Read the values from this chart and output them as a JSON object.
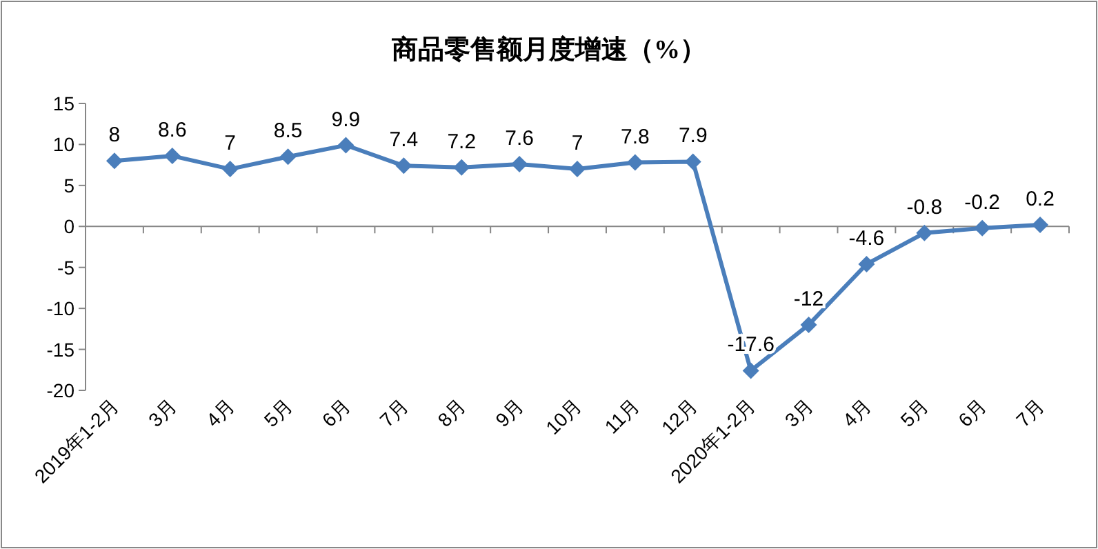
{
  "chart_data": {
    "type": "line",
    "title": "商品零售额月度增速（%）",
    "categories": [
      "2019年1-2月",
      "3月",
      "4月",
      "5月",
      "6月",
      "7月",
      "8月",
      "9月",
      "10月",
      "11月",
      "12月",
      "2020年1-2月",
      "3月",
      "4月",
      "5月",
      "6月",
      "7月"
    ],
    "series": [
      {
        "color": "#4a7ebb",
        "values": [
          8,
          8.6,
          7,
          8.5,
          9.9,
          7.4,
          7.2,
          7.6,
          7,
          7.8,
          7.9,
          -17.6,
          -12,
          -4.6,
          -0.8,
          -0.2,
          0.2
        ]
      }
    ],
    "ylim": [
      -20,
      15
    ],
    "yticks": [
      -20,
      -15,
      -10,
      -5,
      0,
      5,
      10,
      15
    ],
    "marker": "diamond",
    "line_style": "solid",
    "data_labels": true
  }
}
